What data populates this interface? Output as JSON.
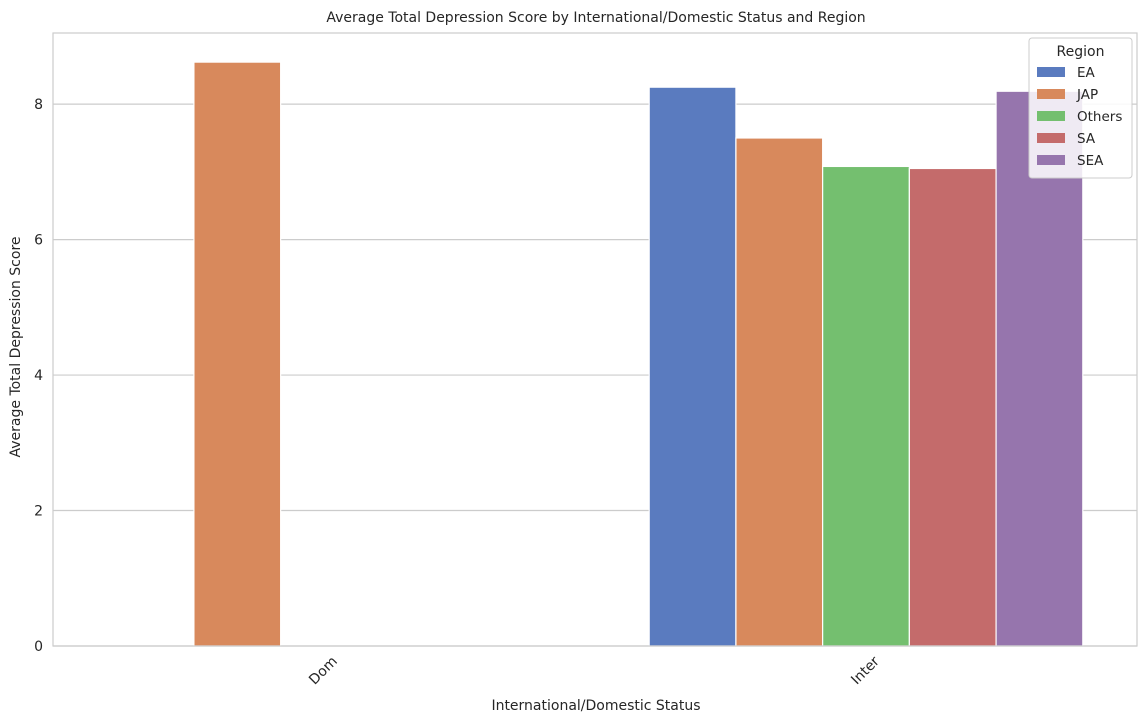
{
  "chart_data": {
    "type": "bar",
    "title": "Average Total Depression Score by International/Domestic Status and Region",
    "xlabel": "International/Domestic Status",
    "ylabel": "Average Total Depression Score",
    "categories": [
      "Dom",
      "Inter"
    ],
    "ylim": [
      0,
      9.05
    ],
    "yticks": [
      0,
      2,
      4,
      6,
      8
    ],
    "grid": true,
    "legend": {
      "title": "Region",
      "placement": "top-right"
    },
    "series": [
      {
        "name": "EA",
        "color": "#5a7bbf",
        "values": [
          null,
          8.25
        ]
      },
      {
        "name": "JAP",
        "color": "#d8895c",
        "values": [
          8.62,
          7.5
        ]
      },
      {
        "name": "Others",
        "color": "#74bf6f",
        "values": [
          null,
          7.08
        ]
      },
      {
        "name": "SA",
        "color": "#c46b6b",
        "values": [
          null,
          7.05
        ]
      },
      {
        "name": "SEA",
        "color": "#9675ad",
        "values": [
          null,
          8.19
        ]
      }
    ]
  }
}
